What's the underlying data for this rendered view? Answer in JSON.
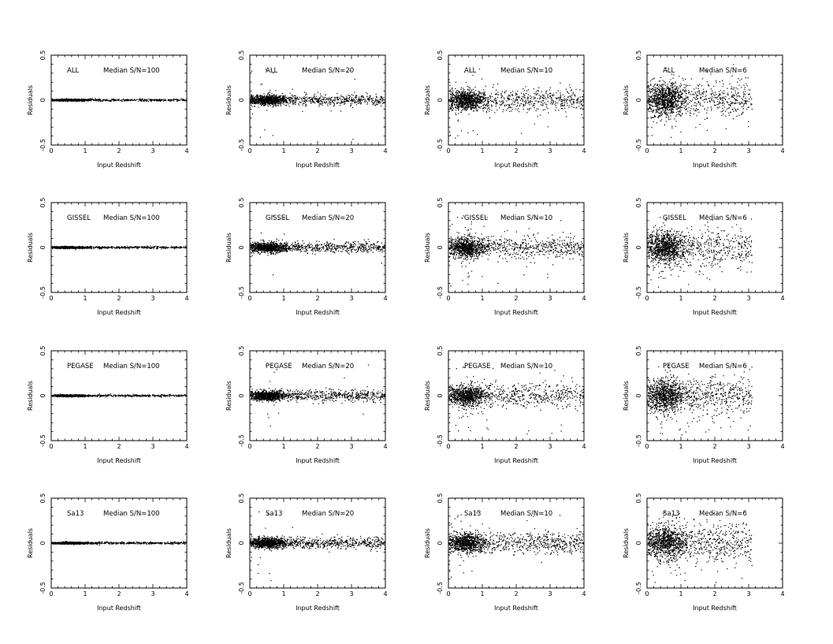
{
  "chart_data": {
    "type": "scatter",
    "layout": "grid 4 rows x 4 columns",
    "xlabel": "Input Redshift",
    "ylabel": "Residuals",
    "xlim": [
      0,
      4
    ],
    "ylim": [
      -0.5,
      0.5
    ],
    "xticks": [
      "0",
      "1",
      "2",
      "3",
      "4"
    ],
    "yticks": [
      "-0.5",
      "0",
      "0.5"
    ],
    "grid": false,
    "point_color": "#000000",
    "rows": [
      "ALL",
      "GISSEL",
      "PEGASE",
      "Sa13"
    ],
    "columns": [
      {
        "label": "Median S/N=100",
        "sn": 100,
        "xmax": 4.0
      },
      {
        "label": "Median S/N=20",
        "sn": 20,
        "xmax": 4.0
      },
      {
        "label": "Median S/N=10",
        "sn": 10,
        "xmax": 4.0
      },
      {
        "label": "Median S/N=6",
        "sn": 6,
        "xmax": 3.1
      }
    ],
    "panels": [
      {
        "template": "ALL",
        "median_sn": "Median S/N=100"
      },
      {
        "template": "ALL",
        "median_sn": "Median S/N=20"
      },
      {
        "template": "ALL",
        "median_sn": "Median S/N=10"
      },
      {
        "template": "ALL",
        "median_sn": "Median S/N=6"
      },
      {
        "template": "GISSEL",
        "median_sn": "Median S/N=100"
      },
      {
        "template": "GISSEL",
        "median_sn": "Median S/N=20"
      },
      {
        "template": "GISSEL",
        "median_sn": "Median S/N=10"
      },
      {
        "template": "GISSEL",
        "median_sn": "Median S/N=6"
      },
      {
        "template": "PEGASE",
        "median_sn": "Median S/N=100"
      },
      {
        "template": "PEGASE",
        "median_sn": "Median S/N=20"
      },
      {
        "template": "PEGASE",
        "median_sn": "Median S/N=10"
      },
      {
        "template": "PEGASE",
        "median_sn": "Median S/N=6"
      },
      {
        "template": "Sa13",
        "median_sn": "Median S/N=100"
      },
      {
        "template": "Sa13",
        "median_sn": "Median S/N=20"
      },
      {
        "template": "Sa13",
        "median_sn": "Median S/N=10"
      },
      {
        "template": "Sa13",
        "median_sn": "Median S/N=6"
      }
    ]
  }
}
